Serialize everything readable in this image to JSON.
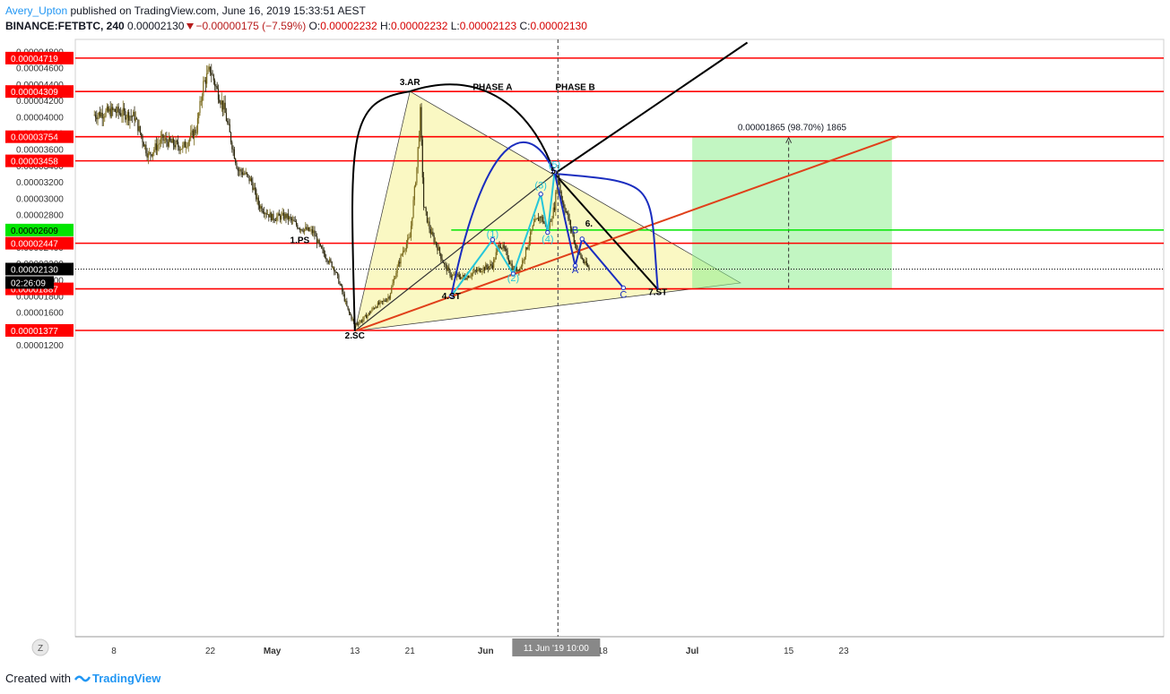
{
  "header": {
    "author": "Avery_Upton",
    "published": "published on TradingView.com, June 16, 2019 15:33:51 AEST",
    "symbol": "BINANCE:FETBTC, 240",
    "last": "0.00002130",
    "change": "−0.00000175 (−7.59%)",
    "o_label": "O:",
    "o": "0.00002232",
    "h_label": "H:",
    "h": "0.00002232",
    "l_label": "L:",
    "l": "0.00002123",
    "c_label": "C:",
    "c": "0.00002130"
  },
  "footer": {
    "created_with": "Created with",
    "brand": "TradingView"
  },
  "chart_data": {
    "type": "candlestick",
    "ylim": [
      1.2e-05,
      4.93e-05
    ],
    "y_ticks": [
      "0.00004800",
      "0.00004600",
      "0.00004400",
      "0.00004200",
      "0.00004000",
      "0.00003800",
      "0.00003600",
      "0.00003400",
      "0.00003200",
      "0.00003000",
      "0.00002800",
      "0.00002600",
      "0.00002400",
      "0.00002200",
      "0.00002000",
      "0.00001800",
      "0.00001600",
      "0.00001400",
      "0.00001200"
    ],
    "x_ticks": [
      {
        "d": "2019-04-08",
        "label": "8"
      },
      {
        "d": "2019-04-22",
        "label": "22"
      },
      {
        "d": "2019-05-01",
        "label": "May"
      },
      {
        "d": "2019-05-13",
        "label": "13"
      },
      {
        "d": "2019-05-21",
        "label": "21"
      },
      {
        "d": "2019-06-01",
        "label": "Jun"
      },
      {
        "d": "2019-06-11",
        "label": "11"
      },
      {
        "d": "2019-06-18",
        "label": "18"
      },
      {
        "d": "2019-07-01",
        "label": "Jul"
      },
      {
        "d": "2019-07-15",
        "label": "15"
      },
      {
        "d": "2019-07-23",
        "label": "23"
      }
    ],
    "price_path": [
      [
        "2019-04-05",
        4.02e-05
      ],
      [
        "2019-04-08",
        4.07e-05
      ],
      [
        "2019-04-11",
        4e-05
      ],
      [
        "2019-04-13",
        3.52e-05
      ],
      [
        "2019-04-15",
        3.72e-05
      ],
      [
        "2019-04-18",
        3.62e-05
      ],
      [
        "2019-04-20",
        3.85e-05
      ],
      [
        "2019-04-21",
        4.4e-05
      ],
      [
        "2019-04-22",
        4.58e-05
      ],
      [
        "2019-04-23",
        4.32e-05
      ],
      [
        "2019-04-24",
        4.1e-05
      ],
      [
        "2019-04-25",
        3.72e-05
      ],
      [
        "2019-04-26",
        3.35e-05
      ],
      [
        "2019-04-27",
        3.3e-05
      ],
      [
        "2019-04-28",
        3.2e-05
      ],
      [
        "2019-04-29",
        2.92e-05
      ],
      [
        "2019-05-01",
        2.76e-05
      ],
      [
        "2019-05-03",
        2.78e-05
      ],
      [
        "2019-05-05",
        2.64e-05
      ],
      [
        "2019-05-07",
        2.58e-05
      ],
      [
        "2019-05-08",
        2.38e-05
      ],
      [
        "2019-05-09",
        2.26e-05
      ],
      [
        "2019-05-10",
        2.14e-05
      ],
      [
        "2019-05-11",
        1.9e-05
      ],
      [
        "2019-05-12",
        1.62e-05
      ],
      [
        "2019-05-13",
        1.45e-05
      ],
      [
        "2019-05-14",
        1.5e-05
      ],
      [
        "2019-05-15",
        1.58e-05
      ],
      [
        "2019-05-16",
        1.68e-05
      ],
      [
        "2019-05-17",
        1.72e-05
      ],
      [
        "2019-05-18",
        1.8e-05
      ],
      [
        "2019-05-19",
        2.1e-05
      ],
      [
        "2019-05-20",
        2.36e-05
      ],
      [
        "2019-05-21",
        2.52e-05
      ],
      [
        "2019-05-22",
        3.38e-05
      ],
      [
        "2019-05-22T12",
        4.05e-05
      ],
      [
        "2019-05-23",
        2.9e-05
      ],
      [
        "2019-05-24",
        2.58e-05
      ],
      [
        "2019-05-25",
        2.4e-05
      ],
      [
        "2019-05-26",
        2.18e-05
      ],
      [
        "2019-05-27",
        2.05e-05
      ],
      [
        "2019-05-29",
        2.03e-05
      ],
      [
        "2019-05-31",
        2.12e-05
      ],
      [
        "2019-06-02",
        2.18e-05
      ],
      [
        "2019-06-03",
        2.45e-05
      ],
      [
        "2019-06-04",
        2.32e-05
      ],
      [
        "2019-06-05",
        2.12e-05
      ],
      [
        "2019-06-06",
        2.14e-05
      ],
      [
        "2019-06-07",
        2.4e-05
      ],
      [
        "2019-06-08",
        2.68e-05
      ],
      [
        "2019-06-09",
        2.78e-05
      ],
      [
        "2019-06-10",
        2.6e-05
      ],
      [
        "2019-06-11",
        2.9e-05
      ],
      [
        "2019-06-11T12",
        3.28e-05
      ],
      [
        "2019-06-12",
        3e-05
      ],
      [
        "2019-06-13",
        2.75e-05
      ],
      [
        "2019-06-14",
        2.43e-05
      ],
      [
        "2019-06-15",
        2.25e-05
      ],
      [
        "2019-06-16",
        2.13e-05
      ]
    ],
    "horizontal_levels": [
      {
        "price": 4.719e-05,
        "label": "0.00004719",
        "color": "#ff0000"
      },
      {
        "price": 4.309e-05,
        "label": "0.00004309",
        "color": "#ff0000"
      },
      {
        "price": 3.754e-05,
        "label": "0.00003754",
        "color": "#ff0000"
      },
      {
        "price": 3.458e-05,
        "label": "0.00003458",
        "color": "#ff0000"
      },
      {
        "price": 2.447e-05,
        "label": "0.00002447",
        "color": "#ff0000"
      },
      {
        "price": 1.887e-05,
        "label": "0.00001887",
        "color": "#ff0000"
      },
      {
        "price": 1.377e-05,
        "label": "0.00001377",
        "color": "#ff0000"
      }
    ],
    "green_level": {
      "price": 2.609e-05,
      "label": "0.00002609",
      "color": "#00e600"
    },
    "current_price": {
      "price": 2.13e-05,
      "label": "0.00002130",
      "countdown": "02:26:09"
    },
    "crosshair": {
      "x_label": "11 Jun '19   10:00"
    },
    "wyckoff_labels": [
      {
        "text": "1.PS",
        "d": "2019-05-05",
        "p": 2.45e-05
      },
      {
        "text": "2.SC",
        "d": "2019-05-13",
        "p": 1.28e-05
      },
      {
        "text": "3.AR",
        "d": "2019-05-21",
        "p": 4.39e-05
      },
      {
        "text": "4.ST",
        "d": "2019-05-27",
        "p": 1.76e-05
      },
      {
        "text": "5.",
        "d": "2019-06-11",
        "p": 3.3e-05
      },
      {
        "text": "6.",
        "d": "2019-06-16",
        "p": 2.65e-05
      },
      {
        "text": "7.ST",
        "d": "2019-06-26",
        "p": 1.81e-05
      },
      {
        "text": "PHASE A",
        "d": "2019-06-02",
        "p": 4.33e-05
      },
      {
        "text": "PHASE B",
        "d": "2019-06-14",
        "p": 4.33e-05
      }
    ],
    "wave_labels": [
      {
        "text": "(1)",
        "d": "2019-06-02",
        "p": 2.52e-05,
        "color": "#26c6da"
      },
      {
        "text": "(2)",
        "d": "2019-06-05",
        "p": 1.98e-05,
        "color": "#26c6da"
      },
      {
        "text": "(3)",
        "d": "2019-06-09",
        "p": 3.12e-05,
        "color": "#26c6da"
      },
      {
        "text": "(4)",
        "d": "2019-06-10",
        "p": 2.46e-05,
        "color": "#26c6da"
      },
      {
        "text": "(5)",
        "d": "2019-06-11",
        "p": 3.37e-05,
        "color": "#26c6da"
      },
      {
        "text": "A",
        "d": "2019-06-14",
        "p": 2.08e-05,
        "color": "#1a2dbf"
      },
      {
        "text": "B",
        "d": "2019-06-14",
        "p": 2.57e-05,
        "color": "#1a2dbf"
      },
      {
        "text": "C",
        "d": "2019-06-21",
        "p": 1.78e-05,
        "color": "#1a2dbf"
      }
    ],
    "measure": {
      "label": "0.00001865 (98.70%) 1865",
      "color": "#90ee90"
    }
  }
}
